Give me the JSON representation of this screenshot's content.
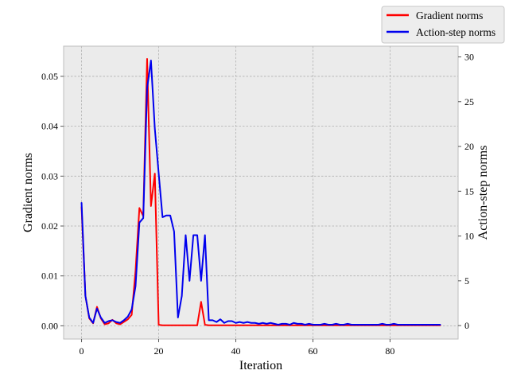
{
  "chart_data": {
    "type": "line",
    "xlabel": "Iteration",
    "ylabel_left": "Gradient norms",
    "ylabel_right": "Action-step norms",
    "xlim": [
      -4.65,
      97.65
    ],
    "ylim_left": [
      -0.00265,
      0.05605
    ],
    "ylim_right": [
      -1.5,
      31.2
    ],
    "x_ticks": [
      0,
      20,
      40,
      60,
      80
    ],
    "x_tick_labels": [
      "0",
      "20",
      "40",
      "60",
      "80"
    ],
    "y_left_ticks": [
      0.0,
      0.01,
      0.02,
      0.03,
      0.04,
      0.05
    ],
    "y_left_tick_labels": [
      "0.00",
      "0.01",
      "0.02",
      "0.03",
      "0.04",
      "0.05"
    ],
    "y_right_ticks": [
      0,
      5,
      10,
      15,
      20,
      25,
      30
    ],
    "y_right_tick_labels": [
      "0",
      "5",
      "10",
      "15",
      "20",
      "25",
      "30"
    ],
    "grid": true,
    "legend_position": "top-right",
    "background_color": "#ebebeb",
    "grid_color": "#b0b0b0",
    "series": [
      {
        "name": "Gradient norms",
        "axis": "left",
        "color": "#ff0000",
        "x": [
          0,
          1,
          2,
          3,
          4,
          5,
          6,
          7,
          8,
          9,
          10,
          11,
          12,
          13,
          14,
          15,
          16,
          17,
          18,
          19,
          20,
          21,
          22,
          23,
          24,
          25,
          26,
          27,
          28,
          29,
          30,
          31,
          32,
          33,
          34,
          35,
          36,
          37,
          38,
          39,
          40,
          41,
          42,
          43,
          44,
          45,
          46,
          47,
          48,
          49,
          50,
          51,
          52,
          53,
          54,
          55,
          56,
          57,
          58,
          59,
          60,
          61,
          62,
          63,
          64,
          65,
          66,
          67,
          68,
          69,
          70,
          71,
          72,
          73,
          74,
          75,
          76,
          77,
          78,
          79,
          80,
          81,
          82,
          83,
          84,
          85,
          86,
          87,
          88,
          89,
          90,
          91,
          92,
          93
        ],
        "y": [
          0.0238,
          0.006,
          0.0015,
          0.0005,
          0.0038,
          0.0015,
          0.0003,
          0.0005,
          0.0012,
          0.0005,
          0.0003,
          0.0008,
          0.0013,
          0.0022,
          0.011,
          0.0236,
          0.022,
          0.0535,
          0.024,
          0.0305,
          0.0002,
          0.0001,
          0.0001,
          0.0001,
          0.0001,
          0.0001,
          0.0001,
          0.0001,
          0.0001,
          0.0001,
          0.0001,
          0.0048,
          0.0002,
          0.0001,
          0.0001,
          0.0001,
          0.0001,
          0.0001,
          0.0001,
          0.0001,
          0.0001,
          0.0001,
          0.0001,
          0.0001,
          0.0001,
          0.0001,
          0.0001,
          0.0001,
          0.0001,
          0.0001,
          0.0001,
          0.0001,
          0.0001,
          0.0001,
          0.0001,
          0.0001,
          0.0001,
          0.0001,
          0.0001,
          0.0001,
          0.0001,
          0.0001,
          0.0001,
          0.0001,
          0.0001,
          0.0001,
          0.0001,
          0.0001,
          0.0001,
          0.0001,
          0.0001,
          0.0001,
          0.0001,
          0.0001,
          0.0001,
          0.0001,
          0.0001,
          0.0001,
          0.0001,
          0.0001,
          0.0001,
          0.0001,
          0.0001,
          0.0001,
          0.0001,
          0.0001,
          0.0001,
          0.0001,
          0.0001,
          0.0001,
          0.0001,
          0.0001,
          0.0001,
          0.0001
        ]
      },
      {
        "name": "Action-step norms",
        "axis": "right",
        "color": "#0000ee",
        "x": [
          0,
          1,
          2,
          3,
          4,
          5,
          6,
          7,
          8,
          9,
          10,
          11,
          12,
          13,
          14,
          15,
          16,
          17,
          18,
          19,
          20,
          21,
          22,
          23,
          24,
          25,
          26,
          27,
          28,
          29,
          30,
          31,
          32,
          33,
          34,
          35,
          36,
          37,
          38,
          39,
          40,
          41,
          42,
          43,
          44,
          45,
          46,
          47,
          48,
          49,
          50,
          51,
          52,
          53,
          54,
          55,
          56,
          57,
          58,
          59,
          60,
          61,
          62,
          63,
          64,
          65,
          66,
          67,
          68,
          69,
          70,
          71,
          72,
          73,
          74,
          75,
          76,
          77,
          78,
          79,
          80,
          81,
          82,
          83,
          84,
          85,
          86,
          87,
          88,
          89,
          90,
          91,
          92,
          93
        ],
        "y": [
          13.7,
          3.3,
          0.9,
          0.3,
          1.9,
          0.9,
          0.3,
          0.5,
          0.6,
          0.4,
          0.3,
          0.6,
          1.0,
          1.8,
          4.4,
          11.5,
          12.0,
          26.5,
          29.6,
          22.0,
          17.0,
          12.1,
          12.3,
          12.3,
          10.5,
          0.9,
          3.3,
          10.1,
          5.0,
          10.1,
          10.1,
          5.0,
          10.1,
          0.6,
          0.6,
          0.4,
          0.7,
          0.3,
          0.5,
          0.5,
          0.3,
          0.4,
          0.3,
          0.4,
          0.3,
          0.3,
          0.2,
          0.3,
          0.2,
          0.3,
          0.2,
          0.1,
          0.2,
          0.2,
          0.1,
          0.3,
          0.2,
          0.2,
          0.1,
          0.2,
          0.1,
          0.1,
          0.1,
          0.2,
          0.1,
          0.1,
          0.2,
          0.1,
          0.1,
          0.2,
          0.1,
          0.1,
          0.1,
          0.1,
          0.1,
          0.1,
          0.1,
          0.1,
          0.2,
          0.1,
          0.1,
          0.2,
          0.1,
          0.1,
          0.1,
          0.1,
          0.1,
          0.1,
          0.1,
          0.1,
          0.1,
          0.1,
          0.1,
          0.1
        ]
      }
    ]
  }
}
